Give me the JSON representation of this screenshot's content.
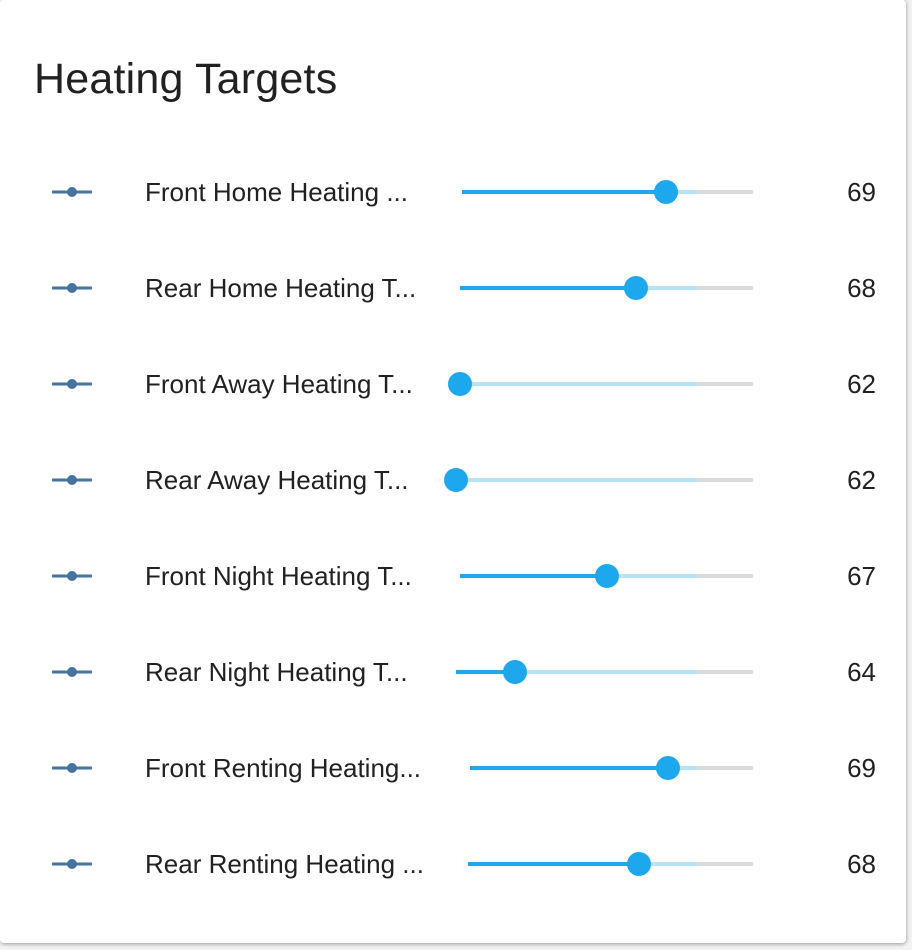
{
  "card": {
    "title": "Heating Targets"
  },
  "colors": {
    "accent": "#1da7ec",
    "buffer": "#b3e5f5",
    "track": "#dcdcdc",
    "icon": "#44739e",
    "text": "#212121"
  },
  "entities": [
    {
      "label": "Front Home Heating ...",
      "value": "69",
      "level": 0.7,
      "icon": "ray-vertex-icon"
    },
    {
      "label": "Rear Home Heating T...",
      "value": "68",
      "level": 0.6,
      "icon": "ray-vertex-icon"
    },
    {
      "label": "Front Away Heating T...",
      "value": "62",
      "level": 0.0,
      "icon": "ray-vertex-icon"
    },
    {
      "label": "Rear Away Heating T...",
      "value": "62",
      "level": 0.0,
      "icon": "ray-vertex-icon"
    },
    {
      "label": "Front Night Heating T...",
      "value": "67",
      "level": 0.5,
      "icon": "ray-vertex-icon"
    },
    {
      "label": "Rear Night Heating T...",
      "value": "64",
      "level": 0.2,
      "icon": "ray-vertex-icon"
    },
    {
      "label": "Front Renting Heating...",
      "value": "69",
      "level": 0.7,
      "icon": "ray-vertex-icon"
    },
    {
      "label": "Rear Renting Heating ...",
      "value": "68",
      "level": 0.6,
      "icon": "ray-vertex-icon"
    }
  ]
}
